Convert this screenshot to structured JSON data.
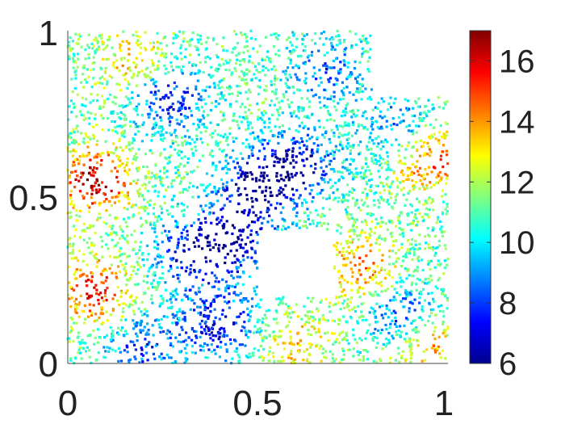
{
  "chart_data": {
    "type": "scatter",
    "title": "",
    "xlabel": "",
    "ylabel": "",
    "xlim": [
      0,
      1
    ],
    "ylim": [
      0,
      1
    ],
    "x_ticks": [
      "0",
      "0.5",
      "1"
    ],
    "y_ticks": [
      "0",
      "0.5",
      "1"
    ],
    "grid": false,
    "legend": "none",
    "colormap": "jet",
    "colorbar": {
      "position": "right",
      "range": [
        6,
        17
      ],
      "ticks": [
        "6",
        "8",
        "10",
        "12",
        "14",
        "16"
      ],
      "tick_values": [
        6,
        8,
        10,
        12,
        14,
        16
      ]
    },
    "domain": {
      "outer_polygon": [
        [
          0,
          0
        ],
        [
          1,
          0
        ],
        [
          1,
          0.8
        ],
        [
          0.8,
          0.8
        ],
        [
          0.8,
          1
        ],
        [
          0,
          1
        ]
      ],
      "hole": [
        [
          0.5,
          0.2
        ],
        [
          0.7,
          0.2
        ],
        [
          0.7,
          0.4
        ],
        [
          0.5,
          0.4
        ]
      ]
    },
    "approx_point_count": 4500,
    "field": {
      "baseline": 11,
      "features": [
        {
          "kind": "high",
          "x": 0.07,
          "y": 0.55,
          "value": 16.5
        },
        {
          "kind": "high",
          "x": 0.07,
          "y": 0.22,
          "value": 15.5
        },
        {
          "kind": "high",
          "x": 0.18,
          "y": 0.9,
          "value": 14
        },
        {
          "kind": "high",
          "x": 0.95,
          "y": 0.62,
          "value": 15.5
        },
        {
          "kind": "high",
          "x": 0.77,
          "y": 0.28,
          "value": 14.5
        },
        {
          "kind": "high",
          "x": 0.95,
          "y": 0.06,
          "value": 14.5
        },
        {
          "kind": "high",
          "x": 0.6,
          "y": 0.05,
          "value": 13.5
        },
        {
          "kind": "low",
          "x": 0.26,
          "y": 0.8,
          "value": 7
        },
        {
          "kind": "low",
          "x": 0.6,
          "y": 0.6,
          "value": 6.5
        },
        {
          "kind": "low",
          "x": 0.49,
          "y": 0.52,
          "value": 6.5
        },
        {
          "kind": "low",
          "x": 0.43,
          "y": 0.37,
          "value": 6.5
        },
        {
          "kind": "low",
          "x": 0.32,
          "y": 0.32,
          "value": 7.5
        },
        {
          "kind": "low",
          "x": 0.4,
          "y": 0.12,
          "value": 7
        },
        {
          "kind": "low",
          "x": 0.2,
          "y": 0.05,
          "value": 8
        },
        {
          "kind": "low",
          "x": 0.88,
          "y": 0.14,
          "value": 7.5
        },
        {
          "kind": "low",
          "x": 0.88,
          "y": 0.7,
          "value": 8
        },
        {
          "kind": "low",
          "x": 0.68,
          "y": 0.88,
          "value": 8.5
        }
      ]
    }
  }
}
